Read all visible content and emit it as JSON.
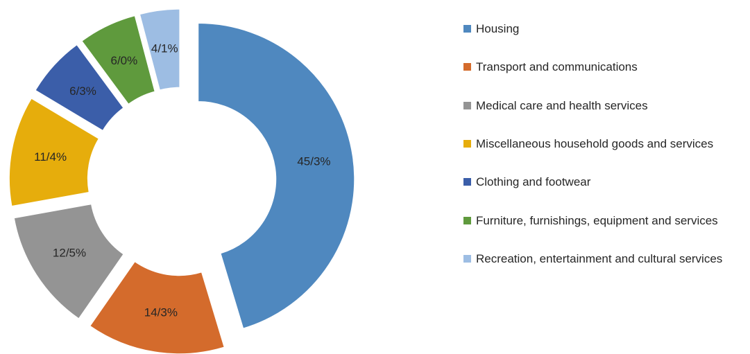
{
  "chart_data": {
    "type": "donut",
    "categories": [
      "Housing",
      "Transport and communications",
      "Medical care and health services",
      "Miscellaneous household goods and services",
      "Clothing and footwear",
      "Furniture, furnishings, equipment and services",
      "Recreation, entertainment and cultural services"
    ],
    "values": [
      45.3,
      14.3,
      12.5,
      11.4,
      6.3,
      6.0,
      4.1
    ],
    "value_labels": [
      "45/3%",
      "14/3%",
      "12/5%",
      "11/4%",
      "6/3%",
      "6/0%",
      "4/1%"
    ],
    "colors": [
      "#4f88bf",
      "#d46b2c",
      "#949494",
      "#e6ad0c",
      "#3b5ea9",
      "#5f9a3d",
      "#9dbde3"
    ],
    "legend": "right"
  }
}
